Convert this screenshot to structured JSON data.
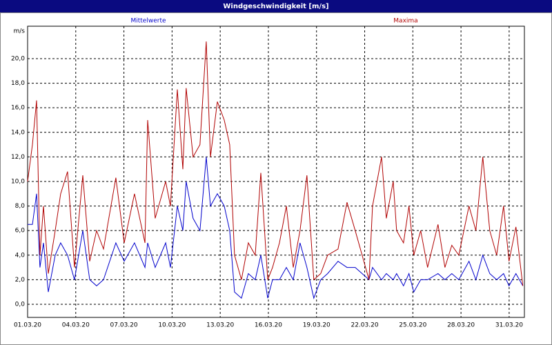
{
  "chart_data": {
    "type": "line",
    "title": "Windgeschwindigkeit [m/s]",
    "ylabel": "m/s",
    "x": [
      0,
      0.3,
      0.56,
      0.77,
      0.99,
      1.29,
      1.72,
      2.06,
      2.49,
      2.92,
      3.44,
      3.87,
      4.3,
      4.73,
      5.5,
      6.02,
      6.66,
      7.31,
      7.48,
      7.95,
      8.6,
      8.9,
      9.33,
      9.67,
      9.88,
      10.31,
      10.74,
      11.13,
      11.39,
      11.82,
      12.25,
      12.59,
      12.89,
      13.32,
      13.75,
      14.18,
      14.53,
      14.96,
      15.26,
      15.69,
      16.12,
      16.55,
      16.97,
      17.4,
      17.83,
      18.26,
      18.69,
      19.34,
      19.9,
      20.41,
      20.84,
      21.27,
      21.49,
      22.05,
      22.35,
      22.78,
      22.99,
      23.42,
      23.76,
      24.06,
      24.49,
      24.92,
      25.57,
      26,
      26.43,
      26.86,
      27.5,
      27.93,
      28.36,
      28.79,
      29.22,
      29.65,
      29.99,
      30.42,
      30.85
    ],
    "series": [
      {
        "name": "Mittelwerte",
        "color": "#0000cc",
        "values": [
          6.5,
          6.5,
          9,
          3,
          5,
          1,
          4,
          5,
          4,
          2,
          6,
          2,
          1.5,
          2,
          5,
          3.5,
          5,
          3,
          5,
          3,
          5,
          3,
          8,
          6,
          10,
          7,
          6,
          12,
          8,
          9,
          8,
          6,
          1,
          0.5,
          2.5,
          2,
          4,
          0.5,
          2,
          2,
          3,
          2,
          5,
          3,
          0.5,
          2,
          2.5,
          3.5,
          3,
          3,
          2.5,
          2,
          3,
          2,
          2.5,
          2,
          2.5,
          1.5,
          2.5,
          1,
          2,
          2,
          2.5,
          2,
          2.5,
          2,
          3.5,
          2,
          4,
          2.5,
          2,
          2.5,
          1.5,
          2.5,
          1.5
        ]
      },
      {
        "name": "Maxima",
        "color": "#b00000",
        "values": [
          10,
          13,
          16.6,
          4,
          8,
          2.5,
          6,
          9,
          10.8,
          3,
          10.5,
          3.5,
          6,
          4.5,
          10.3,
          5,
          9,
          5,
          15,
          7,
          10,
          8,
          17.5,
          11,
          17.6,
          12,
          13,
          21.4,
          12,
          16.5,
          15,
          13,
          4,
          2,
          5,
          4,
          10.7,
          2,
          3,
          5,
          8,
          3,
          6,
          10.5,
          2,
          2.5,
          4,
          4.5,
          8.3,
          6,
          4,
          2,
          8,
          12,
          7,
          10,
          6,
          5,
          8,
          4,
          6,
          3,
          6.5,
          3,
          4.8,
          4,
          8,
          6,
          12,
          6,
          4,
          8,
          3.5,
          6.3,
          1.5
        ]
      }
    ],
    "xlim": [
      0,
      30.95
    ],
    "ylim": [
      -1.07,
      22.64
    ],
    "xticks": [
      {
        "value": 0,
        "label": "01.03.20"
      },
      {
        "value": 3,
        "label": "04.03.20"
      },
      {
        "value": 6,
        "label": "07.03.20"
      },
      {
        "value": 9,
        "label": "10.03.20"
      },
      {
        "value": 12,
        "label": "13.03.20"
      },
      {
        "value": 15,
        "label": "16.03.20"
      },
      {
        "value": 18,
        "label": "19.03.20"
      },
      {
        "value": 21,
        "label": "22.03.20"
      },
      {
        "value": 24,
        "label": "25.03.20"
      },
      {
        "value": 27,
        "label": "28.03.20"
      },
      {
        "value": 30,
        "label": "31.03.20"
      }
    ],
    "yticks": [
      {
        "value": 0,
        "label": "0,0"
      },
      {
        "value": 2,
        "label": "2,0"
      },
      {
        "value": 4,
        "label": "4,0"
      },
      {
        "value": 6,
        "label": "6,0"
      },
      {
        "value": 8,
        "label": "8,0"
      },
      {
        "value": 10,
        "label": "10,0"
      },
      {
        "value": 12,
        "label": "12,0"
      },
      {
        "value": 14,
        "label": "14,0"
      },
      {
        "value": 16,
        "label": "16,0"
      },
      {
        "value": 18,
        "label": "18,0"
      },
      {
        "value": 20,
        "label": "20,0"
      }
    ],
    "grid": true
  }
}
